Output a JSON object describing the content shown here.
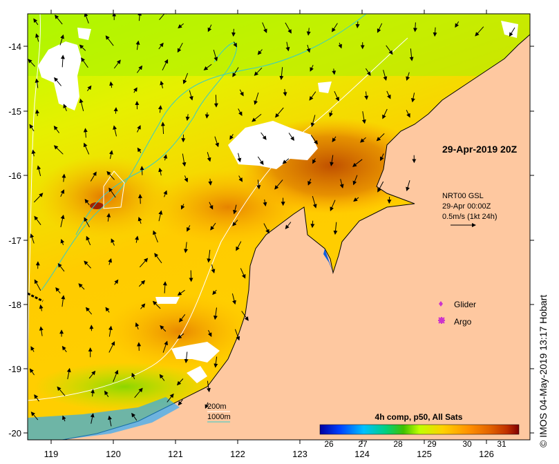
{
  "map": {
    "timestamp": "29-Apr-2019 20Z",
    "current_product": "NRT00 GSL",
    "current_time": "29-Apr 00:00Z",
    "arrow_scale": "0.5m/s (1kt 24h)",
    "legend": {
      "glider": "Glider",
      "argo": "Argo",
      "glider_color": "#cc33cc",
      "argo_color": "#cc33cc"
    },
    "isobaths": {
      "shallow": "200m",
      "deep": "1000m",
      "shallow_color": "#ffffff",
      "deep_color": "#33cccc"
    },
    "colorbar": {
      "title": "4h comp, p50, All Sats",
      "ticks": [
        "26",
        "27",
        "28",
        "29",
        "30",
        "31"
      ],
      "range": [
        25.5,
        31.5
      ],
      "colors": [
        "#0000a0",
        "#0040ff",
        "#00c0ff",
        "#00d080",
        "#40c000",
        "#c0ff00",
        "#ffd000",
        "#ff9000",
        "#e06000",
        "#c03000",
        "#800000"
      ]
    },
    "copyright": "© IMOS 04-May-2019 13:17 Hobart",
    "lon_ticks": [
      "119",
      "120",
      "121",
      "122",
      "123",
      "124",
      "125",
      "126"
    ],
    "lat_ticks": [
      "-14",
      "-15",
      "-16",
      "-17",
      "-18",
      "-19",
      "-20"
    ],
    "land_color": "#fec8a0"
  }
}
